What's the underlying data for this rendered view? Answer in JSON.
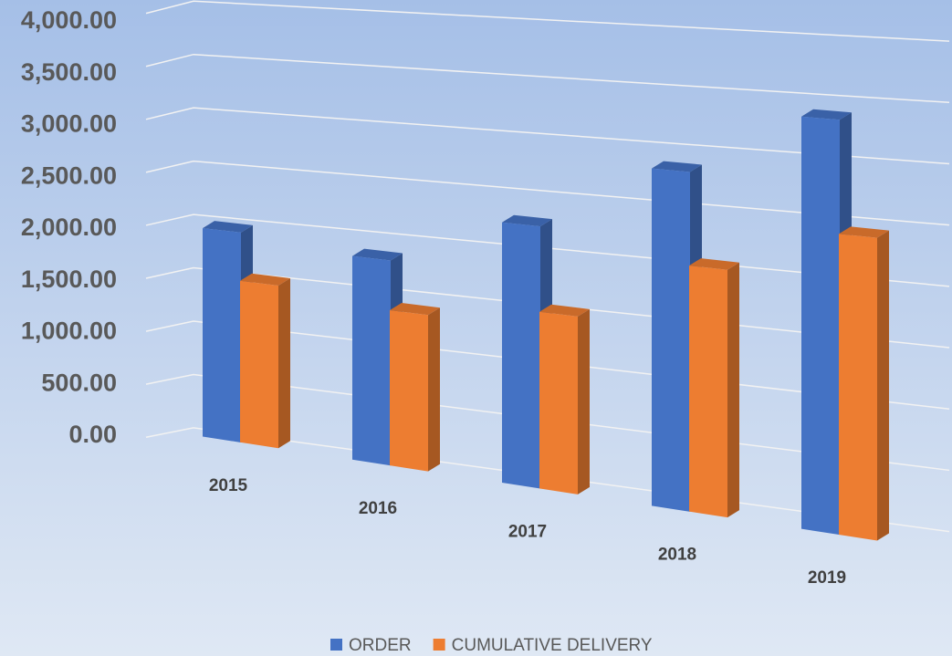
{
  "chart_data": {
    "type": "bar3d",
    "categories": [
      "2015",
      "2016",
      "2017",
      "2018",
      "2019"
    ],
    "series": [
      {
        "name": "ORDER",
        "color": "#4472c4",
        "values": [
          1950,
          1850,
          2300,
          2900,
          3450
        ]
      },
      {
        "name": "CUMULATIVE DELIVERY",
        "color": "#ed7d31",
        "values": [
          1500,
          1400,
          1550,
          2100,
          2500
        ]
      }
    ],
    "ylim": [
      0,
      4000
    ],
    "yticks": [
      {
        "value": 0,
        "label": "0.00"
      },
      {
        "value": 500,
        "label": "500.00"
      },
      {
        "value": 1000,
        "label": "1,000.00"
      },
      {
        "value": 1500,
        "label": "1,500.00"
      },
      {
        "value": 2000,
        "label": "2,000.00"
      },
      {
        "value": 2500,
        "label": "2,500.00"
      },
      {
        "value": 3000,
        "label": "3,000.00"
      },
      {
        "value": 3500,
        "label": "3,500.00"
      },
      {
        "value": 4000,
        "label": "4,000.00"
      }
    ],
    "grid": true,
    "legend": "bottom"
  }
}
